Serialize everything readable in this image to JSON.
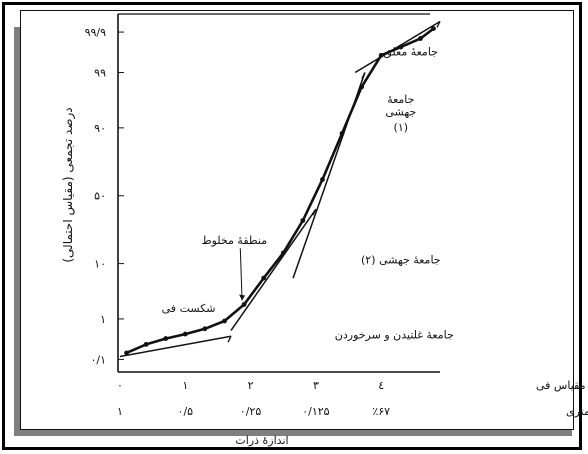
{
  "chart_data": {
    "type": "line",
    "title": "",
    "xlabel": "اندازهٔ ذرات",
    "ylabel": "درصد تجمعی (مقیاس احتمالی)",
    "x_scale_labels": {
      "phi": "مقیاس فی",
      "mm": "مقیاس میلی متری"
    },
    "x_ticks_phi": [
      {
        "value": 0,
        "label": "۰"
      },
      {
        "value": 1,
        "label": "۱"
      },
      {
        "value": 2,
        "label": "۲"
      },
      {
        "value": 3,
        "label": "۳"
      },
      {
        "value": 4,
        "label": "٤"
      }
    ],
    "x_ticks_mm": [
      {
        "value": 0,
        "label": "۱"
      },
      {
        "value": 1,
        "label": "۰/۵"
      },
      {
        "value": 2,
        "label": "۰/۲۵"
      },
      {
        "value": 3,
        "label": "۰/۱۲۵"
      },
      {
        "value": 4,
        "label": "٪۶۷"
      }
    ],
    "y_ticks": [
      {
        "value": 0.1,
        "label": "۰/۱"
      },
      {
        "value": 1,
        "label": "۱"
      },
      {
        "value": 10,
        "label": "۱۰"
      },
      {
        "value": 50,
        "label": "۵۰"
      },
      {
        "value": 90,
        "label": "۹۰"
      },
      {
        "value": 99,
        "label": "۹۹"
      },
      {
        "value": 99.9,
        "label": "۹۹/۹"
      }
    ],
    "xlim": [
      0,
      4.9
    ],
    "ylim": [
      0.05,
      99.97
    ],
    "y_scale": "probability",
    "series": [
      {
        "name": "",
        "style": "line-with-dots",
        "x": [
          0.1,
          0.4,
          0.7,
          1.0,
          1.3,
          1.6,
          1.9,
          2.2,
          2.5,
          2.8,
          3.1,
          3.4,
          3.7,
          4.0,
          4.3,
          4.6,
          4.8
        ],
        "y": [
          0.15,
          0.25,
          0.35,
          0.45,
          0.6,
          0.9,
          2.0,
          6.0,
          14.0,
          32.0,
          62.0,
          88.0,
          98.0,
          99.6,
          99.75,
          99.85,
          99.92
        ]
      },
      {
        "name": "",
        "style": "segmented-populations",
        "segments": [
          {
            "x": [
              0.0,
              1.7
            ],
            "y": [
              0.12,
              0.4
            ]
          },
          {
            "x": [
              1.7,
              3.0
            ],
            "y": [
              0.55,
              40.0
            ]
          },
          {
            "x": [
              2.65,
              3.75
            ],
            "y": [
              6.0,
              99.0
            ]
          },
          {
            "x": [
              3.6,
              4.9
            ],
            "y": [
              99.0,
              99.95
            ]
          }
        ]
      }
    ],
    "annotations": [
      {
        "text": "جامعهٔ معلق",
        "x": 4.45,
        "y": 99.6
      },
      {
        "text": "جامعهٔ",
        "x": 4.3,
        "y": 96.0
      },
      {
        "text": "جهشی",
        "x": 4.3,
        "y": 93.5
      },
      {
        "text": "(۱)",
        "x": 4.3,
        "y": 89.0
      },
      {
        "text": "جامعهٔ جهشی (۲)",
        "x": 4.3,
        "y": 10.0
      },
      {
        "text": "جامعهٔ غلتیدن و سرخوردن",
        "x": 4.2,
        "y": 0.35
      },
      {
        "text": "منطقهٔ مخلوط",
        "x": 1.75,
        "y": 18.0
      },
      {
        "text": "شکست فی",
        "x": 1.05,
        "y": 1.4
      }
    ],
    "grid": false,
    "legend": "none"
  }
}
